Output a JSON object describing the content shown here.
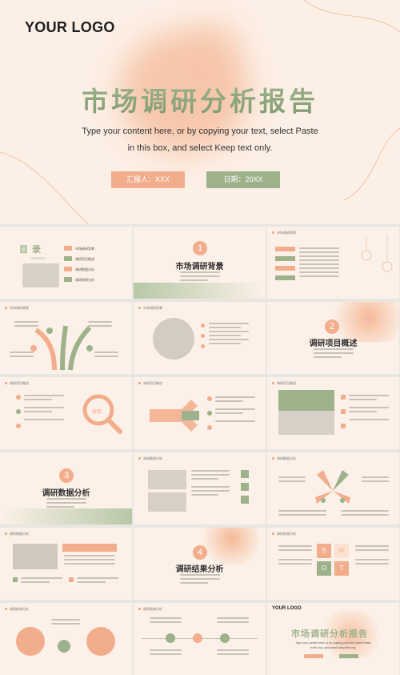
{
  "cover": {
    "logo": "YOUR LOGO",
    "title": "市场调研分析报告",
    "subtitle_line1": "Type your content here, or by copying your text, select Paste",
    "subtitle_line2": "in this box, and select Keep text only.",
    "reporter_label": "汇报人：XXX",
    "date_label": "日期：20XX"
  },
  "colors": {
    "peach": "#f2ad8c",
    "green": "#9db18b",
    "background": "#fcefe5"
  },
  "thumbnails": {
    "toc": {
      "title": "目 录",
      "content_label": "CONTENT",
      "items": [
        "市场调研背景",
        "调研项目概述",
        "调研数据分析",
        "调研结果分析"
      ]
    },
    "section1": {
      "number": "1",
      "label": "市场调研背景"
    },
    "section2": {
      "number": "2",
      "label": "调研项目概述"
    },
    "section3": {
      "number": "3",
      "label": "调研数据分析"
    },
    "section4": {
      "number": "4",
      "label": "调研结果分析"
    },
    "headers": {
      "background": "市场调研背景",
      "overview": "调研项目概述",
      "data": "调研数据分析",
      "result": "调研结果分析"
    },
    "search_label": "搜索",
    "swot": [
      "S",
      "W",
      "O",
      "T"
    ],
    "end": {
      "logo": "YOUR LOGO",
      "title": "市场调研分析报告",
      "subtitle_line1": "Type your content here, or by copying your text, select Paste",
      "subtitle_line2": "in this box, and select Keep text only."
    }
  }
}
